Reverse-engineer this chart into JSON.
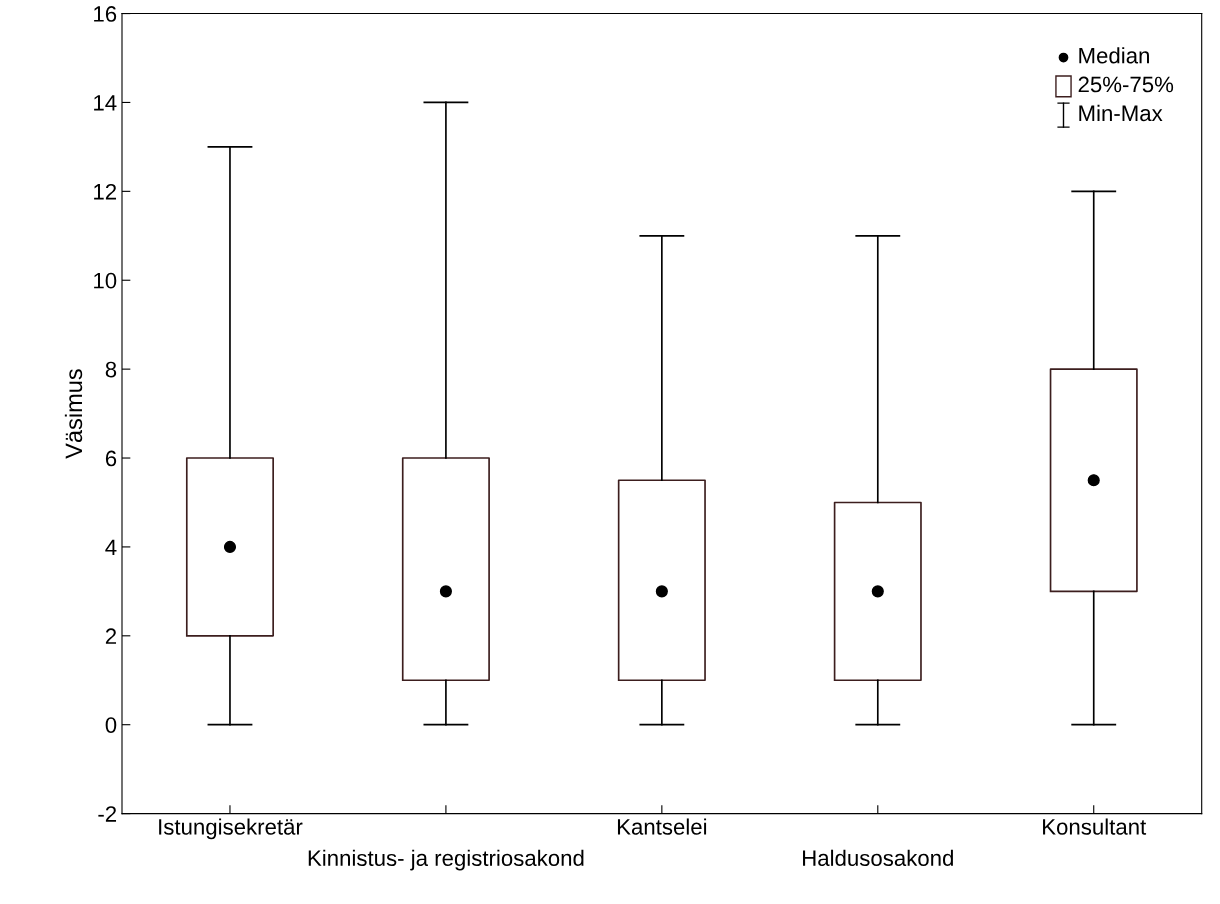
{
  "chart_data": {
    "type": "box",
    "ylabel": "Väsimus",
    "categories": [
      "Istungisekretär",
      "Kinnistus- ja registriosakond",
      "Kantselei",
      "Haldusosakond",
      "Konsultant"
    ],
    "boxes": [
      {
        "low": 0,
        "q1": 2,
        "median": 4,
        "q3": 6,
        "high": 13
      },
      {
        "low": 0,
        "q1": 1,
        "median": 3,
        "q3": 6,
        "high": 14
      },
      {
        "low": 0,
        "q1": 1,
        "median": 3,
        "q3": 5.5,
        "high": 11
      },
      {
        "low": 0,
        "q1": 1,
        "median": 3,
        "q3": 5,
        "high": 11
      },
      {
        "low": 0,
        "q1": 3,
        "median": 5.5,
        "q3": 8,
        "high": 12
      }
    ],
    "color": "#3c1e1e",
    "ylim": [
      -2,
      16
    ],
    "yticks": [
      -2,
      0,
      2,
      4,
      6,
      8,
      10,
      12,
      14,
      16
    ],
    "grid": false,
    "annotations": [
      "Median",
      "25%-75%",
      "Min-Max"
    ]
  }
}
